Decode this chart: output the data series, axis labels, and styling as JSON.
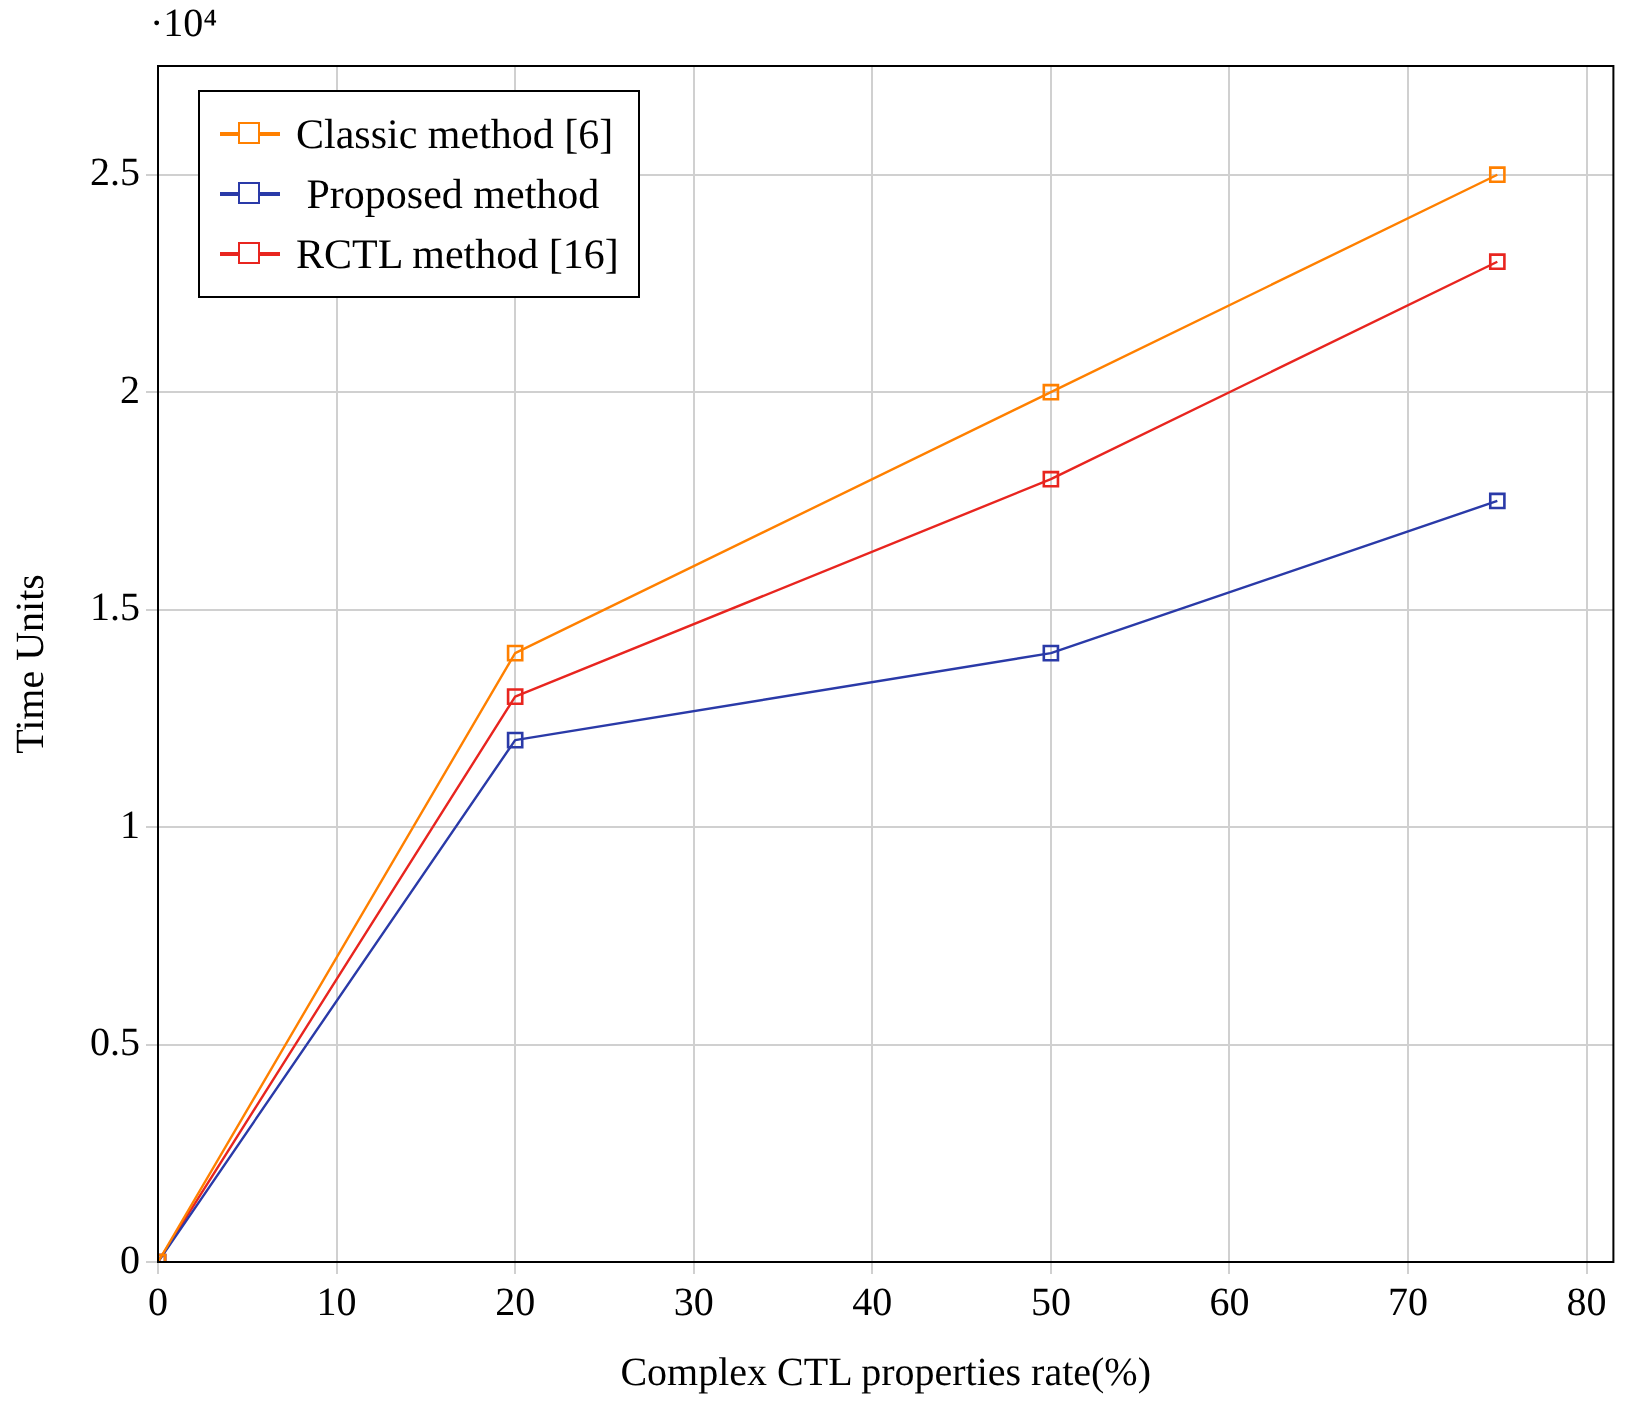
{
  "chart_data": {
    "type": "line",
    "xlabel": "Complex CTL properties rate(%)",
    "ylabel": "Time Units",
    "x": [
      0,
      20,
      50,
      75
    ],
    "series": [
      {
        "name": "Classic method [6]",
        "color": "#ff8000",
        "values": [
          0,
          1.4,
          2.0,
          2.5
        ]
      },
      {
        "name": " Proposed method",
        "color": "#2a3aa8",
        "values": [
          0,
          1.2,
          1.4,
          1.75
        ]
      },
      {
        "name": "RCTL method [16]",
        "color": "#e8251f",
        "values": [
          0,
          1.3,
          1.8,
          2.3
        ]
      }
    ],
    "xlim": [
      0,
      81.5
    ],
    "xticks": [
      0,
      10,
      20,
      30,
      40,
      50,
      60,
      70,
      80
    ],
    "ylim": [
      0,
      2.75
    ],
    "yticks": [
      0,
      0.5,
      1,
      1.5,
      2,
      2.5
    ],
    "annotations": [
      "·10⁴"
    ],
    "grid": true,
    "legend": "top left",
    "marker": "square",
    "line_style": "solid"
  }
}
